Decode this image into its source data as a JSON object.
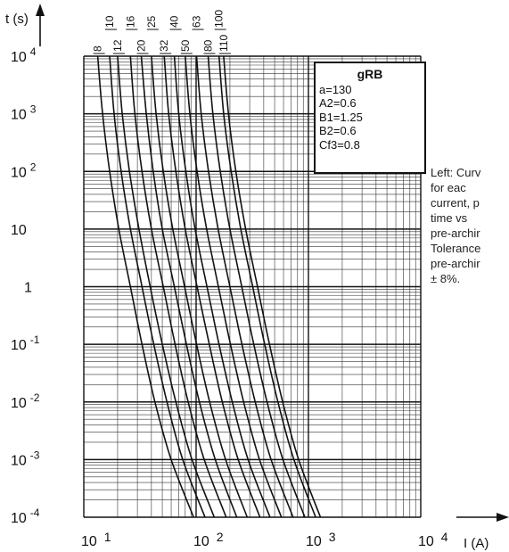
{
  "chart_data": {
    "type": "line",
    "title": "",
    "ylabel": "t (s)",
    "xlabel": "I (A)",
    "x_scale": "log",
    "y_scale": "log",
    "xlim": [
      10,
      10000
    ],
    "ylim": [
      0.0001,
      10000
    ],
    "x_ticks": [
      {
        "value": 10,
        "base": "10",
        "exp": "1"
      },
      {
        "value": 100,
        "base": "10",
        "exp": "2"
      },
      {
        "value": 1000,
        "base": "10",
        "exp": "3"
      },
      {
        "value": 10000,
        "base": "10",
        "exp": "4"
      }
    ],
    "y_ticks": [
      {
        "value": 10000,
        "base": "10",
        "exp": "4"
      },
      {
        "value": 1000,
        "base": "10",
        "exp": "3"
      },
      {
        "value": 100,
        "base": "10",
        "exp": "2"
      },
      {
        "value": 10,
        "base": "10",
        "exp": ""
      },
      {
        "value": 1,
        "base": "1",
        "exp": ""
      },
      {
        "value": 0.1,
        "base": "10",
        "exp": "-1"
      },
      {
        "value": 0.01,
        "base": "10",
        "exp": "-2"
      },
      {
        "value": 0.001,
        "base": "10",
        "exp": "-3"
      },
      {
        "value": 0.0001,
        "base": "10",
        "exp": "-4"
      }
    ],
    "grid": true,
    "series": [
      {
        "name": "8",
        "points": [
          [
            13.3,
            10000
          ],
          [
            14.7,
            1000
          ],
          [
            17,
            100
          ],
          [
            20.5,
            10
          ],
          [
            26,
            1
          ],
          [
            33,
            0.1
          ],
          [
            43,
            0.01
          ],
          [
            60,
            0.001
          ],
          [
            95,
            0.0001
          ]
        ]
      },
      {
        "name": "10",
        "points": [
          [
            17,
            10000
          ],
          [
            18.6,
            1000
          ],
          [
            21.5,
            100
          ],
          [
            26,
            10
          ],
          [
            33,
            1
          ],
          [
            42,
            0.1
          ],
          [
            55,
            0.01
          ],
          [
            76,
            0.001
          ],
          [
            120,
            0.0001
          ]
        ]
      },
      {
        "name": "12",
        "points": [
          [
            20,
            10000
          ],
          [
            22,
            1000
          ],
          [
            25.5,
            100
          ],
          [
            31,
            10
          ],
          [
            39,
            1
          ],
          [
            50,
            0.1
          ],
          [
            66,
            0.01
          ],
          [
            92,
            0.001
          ],
          [
            145,
            0.0001
          ]
        ]
      },
      {
        "name": "16",
        "points": [
          [
            26,
            10000
          ],
          [
            28.5,
            1000
          ],
          [
            33,
            100
          ],
          [
            40,
            10
          ],
          [
            51,
            1
          ],
          [
            65,
            0.1
          ],
          [
            85,
            0.01
          ],
          [
            118,
            0.001
          ],
          [
            185,
            0.0001
          ]
        ]
      },
      {
        "name": "20",
        "points": [
          [
            32.5,
            10000
          ],
          [
            36,
            1000
          ],
          [
            41.5,
            100
          ],
          [
            50,
            10
          ],
          [
            64,
            1
          ],
          [
            82,
            0.1
          ],
          [
            107,
            0.01
          ],
          [
            148,
            0.001
          ],
          [
            230,
            0.0001
          ]
        ]
      },
      {
        "name": "25",
        "points": [
          [
            40,
            10000
          ],
          [
            44,
            1000
          ],
          [
            51,
            100
          ],
          [
            62,
            10
          ],
          [
            79,
            1
          ],
          [
            101,
            0.1
          ],
          [
            132,
            0.01
          ],
          [
            183,
            0.001
          ],
          [
            285,
            0.0001
          ]
        ]
      },
      {
        "name": "32",
        "points": [
          [
            52,
            10000
          ],
          [
            57,
            1000
          ],
          [
            66,
            100
          ],
          [
            80,
            10
          ],
          [
            102,
            1
          ],
          [
            131,
            0.1
          ],
          [
            171,
            0.01
          ],
          [
            237,
            0.001
          ],
          [
            370,
            0.0001
          ]
        ]
      },
      {
        "name": "40",
        "points": [
          [
            64,
            10000
          ],
          [
            70,
            1000
          ],
          [
            81,
            100
          ],
          [
            98,
            10
          ],
          [
            125,
            1
          ],
          [
            160,
            0.1
          ],
          [
            210,
            0.01
          ],
          [
            290,
            0.001
          ],
          [
            455,
            0.0001
          ]
        ]
      },
      {
        "name": "50",
        "points": [
          [
            80,
            10000
          ],
          [
            88,
            1000
          ],
          [
            102,
            100
          ],
          [
            124,
            10
          ],
          [
            158,
            1
          ],
          [
            202,
            0.1
          ],
          [
            265,
            0.01
          ],
          [
            367,
            0.001
          ],
          [
            575,
            0.0001
          ]
        ]
      },
      {
        "name": "63",
        "points": [
          [
            101,
            10000
          ],
          [
            111,
            1000
          ],
          [
            129,
            100
          ],
          [
            157,
            10
          ],
          [
            200,
            1
          ],
          [
            256,
            0.1
          ],
          [
            336,
            0.01
          ],
          [
            465,
            0.001
          ],
          [
            730,
            0.0001
          ]
        ]
      },
      {
        "name": "80",
        "points": [
          [
            128,
            10000
          ],
          [
            141,
            1000
          ],
          [
            164,
            100
          ],
          [
            200,
            10
          ],
          [
            255,
            1
          ],
          [
            326,
            0.1
          ],
          [
            428,
            0.01
          ],
          [
            593,
            0.001
          ],
          [
            930,
            0.0001
          ]
        ]
      },
      {
        "name": "100",
        "points": [
          [
            160,
            10000
          ],
          [
            176,
            1000
          ],
          [
            205,
            100
          ],
          [
            250,
            10
          ],
          [
            319,
            1
          ],
          [
            408,
            0.1
          ],
          [
            535,
            0.01
          ],
          [
            742,
            0.001
          ],
          [
            1160,
            0.0001
          ]
        ]
      },
      {
        "name": "110",
        "points": [
          [
            176,
            10000
          ],
          [
            194,
            1000
          ],
          [
            226,
            100
          ],
          [
            276,
            10
          ],
          [
            352,
            1
          ],
          [
            450,
            0.1
          ],
          [
            590,
            0.01
          ],
          [
            818,
            0.001
          ],
          [
            1280,
            0.0001
          ]
        ]
      }
    ],
    "legend_box": {
      "title": "gRB",
      "lines": [
        "a=130",
        "A2=0.6",
        "B1=1.25",
        "B2=0.6",
        "Cf3=0.8"
      ]
    }
  },
  "side_note": [
    "Left:  Curv",
    "for     eac",
    "current, p",
    "time    vs",
    "pre-archir",
    "Tolerance",
    "pre-archir",
    "± 8%."
  ]
}
